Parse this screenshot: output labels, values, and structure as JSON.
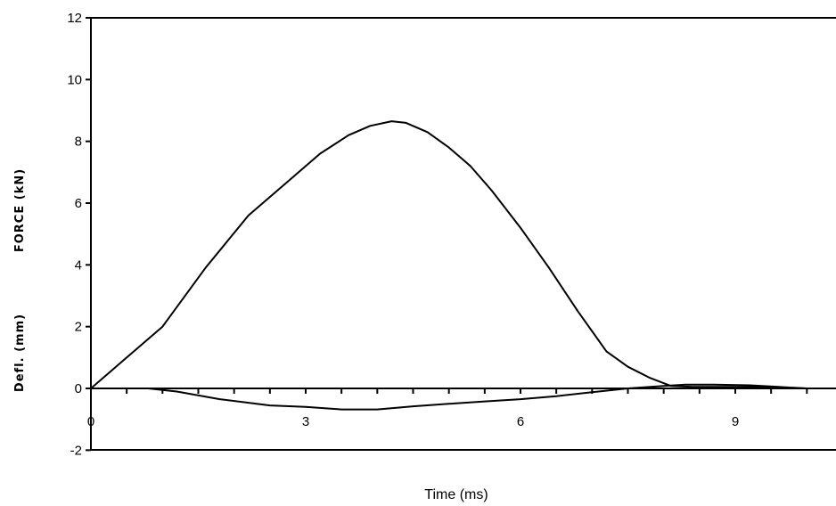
{
  "chart_data": {
    "type": "line",
    "xlabel": "Time (ms)",
    "ylabel_force": "FORCE (kN)",
    "ylabel_defl": "Defl. (mm)",
    "xlim": [
      0,
      10.5
    ],
    "ylim": [
      -2,
      12
    ],
    "xticks": [
      0,
      3,
      6,
      9
    ],
    "yticks": [
      12,
      10,
      8,
      6,
      4,
      2,
      0,
      -2
    ],
    "grid": false,
    "series": [
      {
        "x": [
          0,
          0.4,
          1.0,
          1.6,
          2.2,
          2.7,
          3.2,
          3.6,
          3.9,
          4.2,
          4.4,
          4.7,
          5.0,
          5.3,
          5.6,
          6.0,
          6.4,
          6.8,
          7.2,
          7.5,
          7.8,
          8.1,
          8.4,
          8.8,
          9.2,
          9.6,
          10.0
        ],
        "y": [
          0,
          0.8,
          2.0,
          3.9,
          5.6,
          6.6,
          7.6,
          8.2,
          8.5,
          8.65,
          8.6,
          8.3,
          7.8,
          7.2,
          6.4,
          5.2,
          3.9,
          2.5,
          1.2,
          0.7,
          0.35,
          0.08,
          0.05,
          0.05,
          0.05,
          0.02,
          0
        ]
      },
      {
        "x": [
          0,
          0.8,
          1.2,
          1.8,
          2.5,
          3.0,
          3.5,
          4.0,
          4.5,
          5.0,
          5.5,
          6.0,
          6.5,
          7.0,
          7.5,
          8.0,
          8.3,
          8.7,
          9.2,
          9.6,
          10.0
        ],
        "y": [
          0,
          0,
          -0.1,
          -0.35,
          -0.55,
          -0.6,
          -0.68,
          -0.68,
          -0.58,
          -0.5,
          -0.42,
          -0.35,
          -0.25,
          -0.12,
          0,
          0.08,
          0.12,
          0.12,
          0.1,
          0.05,
          0
        ]
      }
    ]
  }
}
